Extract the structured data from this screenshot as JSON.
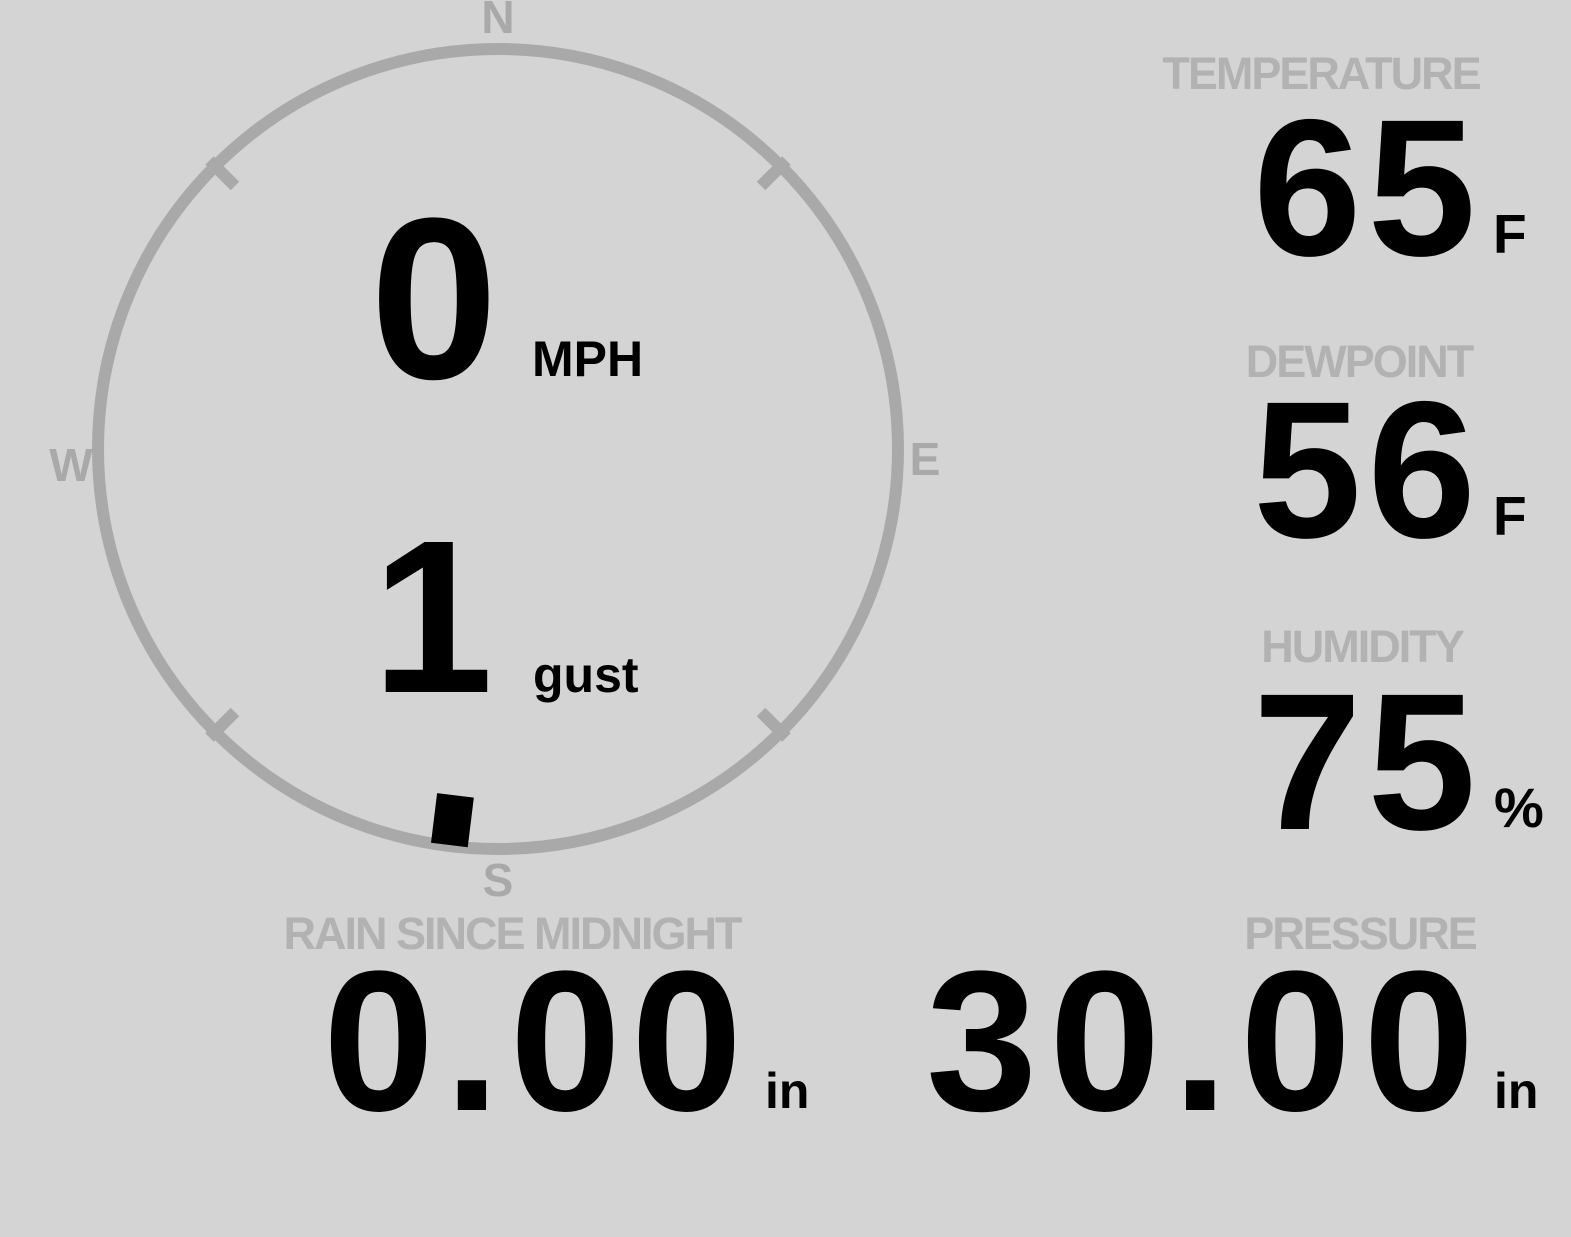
{
  "colors": {
    "background": "#d4d4d4",
    "label_gray": "#b2b2b2",
    "compass_gray": "#a9a9a9",
    "value_black": "#000000"
  },
  "wind": {
    "speed_value": "0",
    "speed_unit": "MPH",
    "gust_value": "1",
    "gust_label": "gust",
    "direction_degrees": 187,
    "compass_labels": {
      "north": "N",
      "east": "E",
      "south": "S",
      "west": "W"
    }
  },
  "temperature": {
    "label": "TEMPERATURE",
    "value": "65",
    "unit": "F"
  },
  "dewpoint": {
    "label": "DEWPOINT",
    "value": "56",
    "unit": "F"
  },
  "humidity": {
    "label": "HUMIDITY",
    "value": "75",
    "unit": "%"
  },
  "rain": {
    "label": "RAIN SINCE MIDNIGHT",
    "value": "0.00",
    "unit": "in"
  },
  "pressure": {
    "label": "PRESSURE",
    "value": "30.00",
    "unit": "in"
  }
}
